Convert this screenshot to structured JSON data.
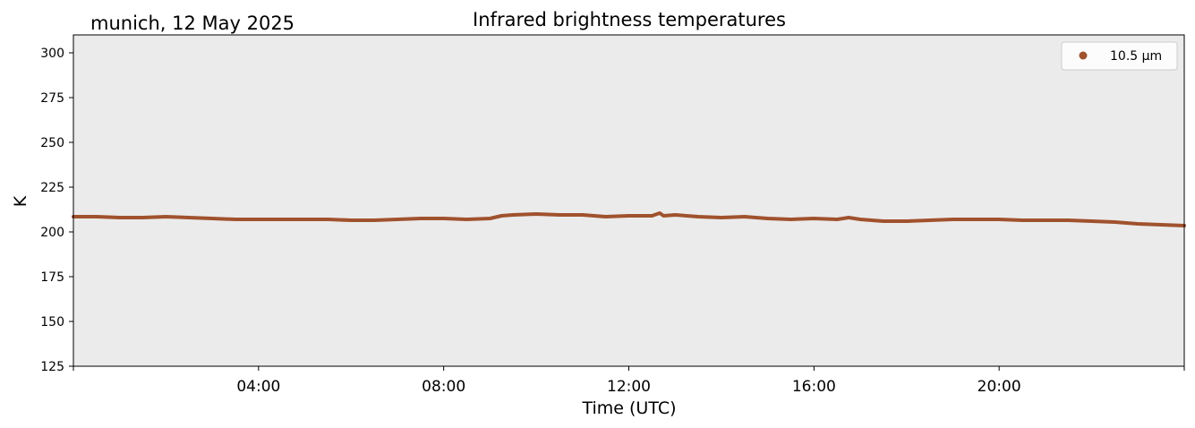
{
  "chart_data": {
    "type": "line",
    "title": "Infrared brightness temperatures",
    "location_date": "munich, 12 May 2025",
    "xlabel": "Time (UTC)",
    "ylabel": "K",
    "xlim": [
      "00:00",
      "24:00"
    ],
    "ylim": [
      125,
      310
    ],
    "x_ticks": [
      "04:00",
      "08:00",
      "12:00",
      "16:00",
      "20:00"
    ],
    "y_ticks": [
      125,
      150,
      175,
      200,
      225,
      250,
      275,
      300
    ],
    "grid": false,
    "background": "#ebebeb",
    "legend_position": "top-right",
    "series": [
      {
        "name": "10.5 µm",
        "color": "#a0522d",
        "x": [
          "00:00",
          "00:30",
          "01:00",
          "01:30",
          "02:00",
          "02:30",
          "03:00",
          "03:30",
          "04:00",
          "04:30",
          "05:00",
          "05:30",
          "06:00",
          "06:30",
          "07:00",
          "07:30",
          "08:00",
          "08:30",
          "09:00",
          "09:15",
          "09:30",
          "10:00",
          "10:30",
          "11:00",
          "11:30",
          "12:00",
          "12:30",
          "12:40",
          "12:45",
          "13:00",
          "13:30",
          "14:00",
          "14:30",
          "15:00",
          "15:30",
          "16:00",
          "16:30",
          "16:45",
          "17:00",
          "17:30",
          "18:00",
          "18:30",
          "19:00",
          "19:30",
          "20:00",
          "20:30",
          "21:00",
          "21:30",
          "22:00",
          "22:30",
          "23:00",
          "23:30",
          "24:00"
        ],
        "values": [
          208.5,
          208.5,
          208.0,
          208.0,
          208.5,
          208.0,
          207.5,
          207.0,
          207.0,
          207.0,
          207.0,
          207.0,
          206.5,
          206.5,
          207.0,
          207.5,
          207.5,
          207.0,
          207.5,
          209.0,
          209.5,
          210.0,
          209.5,
          209.5,
          208.5,
          209.0,
          209.0,
          210.5,
          209.0,
          209.5,
          208.5,
          208.0,
          208.5,
          207.5,
          207.0,
          207.5,
          207.0,
          208.0,
          207.0,
          206.0,
          206.0,
          206.5,
          207.0,
          207.0,
          207.0,
          206.5,
          206.5,
          206.5,
          206.0,
          205.5,
          204.5,
          204.0,
          203.5
        ]
      }
    ]
  }
}
